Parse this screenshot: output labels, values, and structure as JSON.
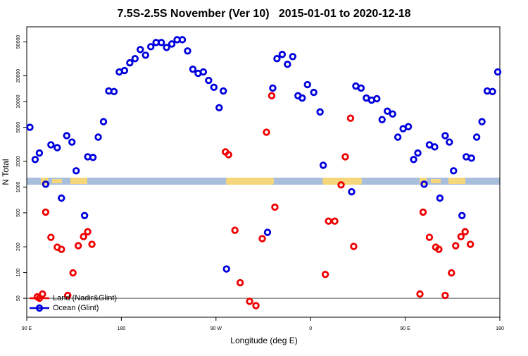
{
  "chart_data": {
    "type": "scatter",
    "title": "7.5S-2.5S November (Ver 10)   2015-01-01 to 2020-12-18",
    "x_label": "Longitude (deg E)",
    "y_label": "N Total",
    "xlim": [
      90,
      540
    ],
    "xticks": [
      {
        "value": 90,
        "label": "90 E"
      },
      180,
      {
        "value": 270,
        "label": "90 W"
      },
      {
        "value": 360,
        "label": "0"
      },
      {
        "value": 450,
        "label": "90 E"
      },
      {
        "value": 540,
        "label": "180"
      }
    ],
    "ylim": [
      30,
      75000
    ],
    "log_y": true,
    "yticks": [
      50,
      100,
      200,
      500,
      1000,
      2000,
      5000,
      10000,
      20000,
      50000
    ],
    "reference_line": 50,
    "legend": "bottom-left",
    "series": [
      {
        "name": "Land (Nadir&Glint)",
        "color": "#ee0000",
        "x": [
          100,
          105,
          108,
          113,
          119,
          123,
          129,
          134,
          139,
          144,
          148,
          152,
          279,
          282,
          288,
          293,
          302,
          308,
          314,
          318,
          323,
          326,
          374,
          377,
          383,
          389,
          393,
          398,
          401,
          464,
          467,
          473,
          479,
          482,
          488,
          494,
          498,
          503,
          507,
          512
        ],
        "values": [
          52,
          56,
          509,
          258,
          198,
          187,
          54,
          99,
          206,
          263,
          300,
          214,
          2580,
          2390,
          312,
          76,
          46,
          41,
          249,
          4380,
          11700,
          582,
          95,
          399,
          399,
          1060,
          2260,
          6390,
          202,
          56,
          509,
          258,
          198,
          187,
          54,
          99,
          206,
          263,
          300,
          214
        ]
      },
      {
        "name": "Ocean (Glint)",
        "color": "#0000dd",
        "x": [
          93,
          98,
          102,
          108,
          113,
          119,
          123,
          128,
          133,
          137,
          145,
          148,
          153,
          158,
          163,
          168,
          173,
          178,
          183,
          188,
          193,
          198,
          203,
          208,
          213,
          218,
          223,
          228,
          233,
          238,
          243,
          248,
          253,
          258,
          263,
          268,
          273,
          277,
          280,
          319,
          324,
          328,
          333,
          338,
          343,
          348,
          352,
          357,
          363,
          369,
          372,
          399,
          403,
          408,
          413,
          418,
          423,
          428,
          433,
          438,
          443,
          448,
          453,
          458,
          462,
          468,
          473,
          478,
          483,
          488,
          492,
          496,
          504,
          508,
          513,
          518,
          523,
          528,
          533,
          538
        ],
        "values": [
          5000,
          2100,
          2500,
          1080,
          3120,
          2890,
          743,
          3990,
          3360,
          1550,
          464,
          2260,
          2220,
          3840,
          5820,
          13300,
          13100,
          22200,
          23100,
          28400,
          31800,
          40600,
          34900,
          43800,
          49100,
          49100,
          43000,
          47200,
          52900,
          52900,
          39100,
          23900,
          21400,
          22200,
          17700,
          14700,
          8480,
          13300,
          110,
          295,
          14400,
          31800,
          35600,
          27300,
          33600,
          11700,
          11000,
          15800,
          12800,
          7570,
          1800,
          881,
          15200,
          14400,
          11000,
          10400,
          10800,
          6150,
          7720,
          7160,
          3840,
          4820,
          5090,
          2100,
          2500,
          1080,
          3120,
          2950,
          743,
          3990,
          3360,
          1550,
          464,
          2260,
          2180,
          3840,
          5820,
          13300,
          13100,
          22200
        ]
      }
    ]
  }
}
